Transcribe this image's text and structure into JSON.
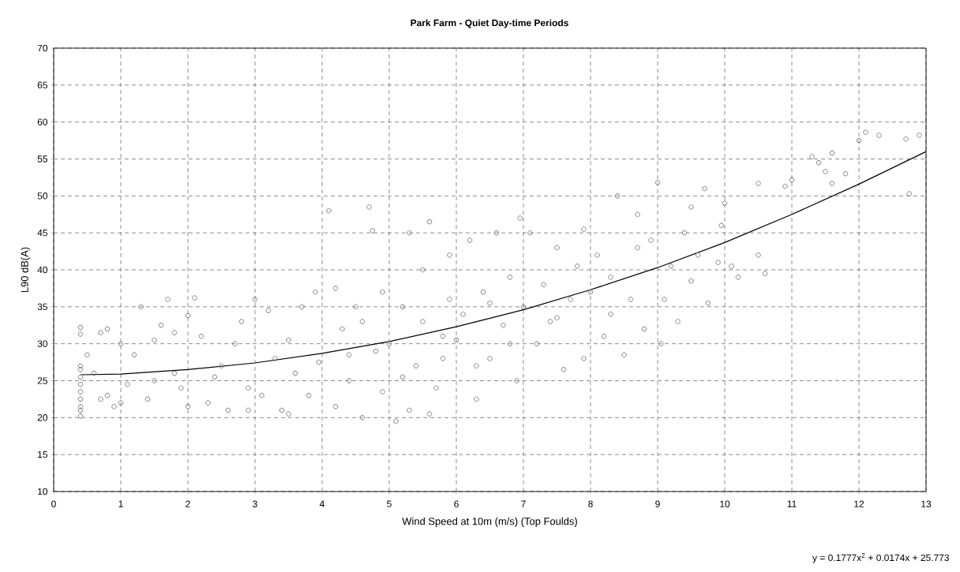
{
  "chart_data": {
    "type": "scatter",
    "title": "Park Farm - Quiet Day-time Periods",
    "xlabel": "Wind Speed at 10m (m/s) (Top Foulds)",
    "ylabel": "L90 dB(A)",
    "annotations": [
      "y = 0.1777x$^{2}$ + 0.0174x + 25.773"
    ],
    "xlim": [
      0,
      13
    ],
    "ylim": [
      10,
      70
    ],
    "xticks": [
      0,
      1,
      2,
      3,
      4,
      5,
      6,
      7,
      8,
      9,
      10,
      11,
      12,
      13
    ],
    "yticks": [
      10,
      15,
      20,
      25,
      30,
      35,
      40,
      45,
      50,
      55,
      60,
      65,
      70
    ],
    "grid": true,
    "series": [
      {
        "color": "#808080",
        "marker": "circle",
        "x": [
          0.4,
          0.4,
          0.4,
          0.4,
          0.4,
          0.4,
          0.4,
          0.4,
          0.4,
          0.4,
          0.4,
          0.5,
          0.6,
          0.7,
          0.8,
          0.7,
          0.9,
          0.8,
          1.0,
          1.0,
          1.1,
          1.2,
          1.3,
          1.4,
          1.5,
          1.6,
          1.7,
          1.8,
          1.9,
          2.0,
          2.0,
          1.5,
          1.8,
          2.1,
          2.2,
          2.3,
          2.5,
          2.6,
          2.7,
          2.9,
          2.8,
          2.4,
          2.9,
          3.0,
          3.1,
          3.2,
          3.3,
          3.4,
          3.5,
          3.6,
          3.7,
          3.8,
          3.9,
          3.95,
          3.5,
          4.1,
          4.2,
          4.3,
          4.4,
          4.5,
          4.6,
          4.7,
          4.75,
          4.8,
          4.9,
          4.4,
          4.6,
          4.9,
          4.2,
          5.0,
          5.1,
          5.2,
          5.3,
          5.4,
          5.5,
          5.6,
          5.7,
          5.8,
          5.9,
          5.3,
          5.5,
          5.8,
          5.6,
          5.2,
          5.9,
          6.0,
          6.1,
          6.2,
          6.3,
          6.4,
          6.5,
          6.6,
          6.7,
          6.8,
          6.9,
          6.95,
          6.3,
          6.5,
          6.8,
          7.0,
          7.1,
          7.2,
          7.3,
          7.4,
          7.5,
          7.6,
          7.7,
          7.8,
          7.9,
          7.5,
          7.9,
          8.0,
          8.1,
          8.2,
          8.3,
          8.4,
          8.5,
          8.6,
          8.7,
          8.8,
          8.9,
          8.7,
          8.3,
          9.0,
          9.05,
          9.1,
          9.2,
          9.3,
          9.4,
          9.5,
          9.6,
          9.7,
          9.75,
          9.9,
          9.95,
          9.5,
          10.0,
          10.1,
          10.2,
          10.5,
          10.6,
          10.5,
          10.9,
          11.0,
          11.3,
          11.4,
          11.5,
          11.6,
          11.6,
          11.8,
          12.0,
          12.1,
          12.3,
          12.7,
          12.75,
          12.9
        ],
        "values": [
          32.2,
          31.3,
          27,
          26.5,
          25.5,
          24.5,
          23.5,
          22.5,
          21.5,
          21,
          20.2,
          28.5,
          26,
          31.5,
          32,
          22.5,
          21.5,
          23,
          30,
          22,
          24.5,
          28.5,
          35,
          22.5,
          30.5,
          32.5,
          36,
          26,
          24,
          33.8,
          21.5,
          25,
          31.5,
          36.2,
          31,
          22,
          27,
          21,
          30,
          24,
          33,
          25.5,
          21,
          36,
          23,
          34.5,
          28,
          21,
          30.5,
          26,
          35,
          23,
          37,
          27.5,
          20.5,
          48,
          37.5,
          32,
          25,
          35,
          20,
          48.5,
          45.3,
          29,
          37,
          28.5,
          33,
          23.5,
          21.5,
          30,
          19.5,
          35,
          45,
          27,
          40,
          46.5,
          24,
          31,
          42,
          21,
          33,
          28,
          20.5,
          25.5,
          36,
          30.5,
          34,
          44,
          22.5,
          37,
          28,
          45,
          32.5,
          39,
          25,
          47,
          27,
          35.5,
          30,
          35,
          45,
          30,
          38,
          33,
          43,
          26.5,
          36,
          40.5,
          28,
          33.5,
          45.5,
          37,
          42,
          31,
          39,
          50,
          28.5,
          36,
          43,
          32,
          44,
          47.5,
          34,
          51.8,
          30,
          36,
          40.5,
          33,
          45,
          48.5,
          42,
          51,
          35.5,
          41,
          46,
          38.5,
          49,
          40.5,
          39,
          42,
          39.5,
          51.7,
          51.3,
          52.2,
          55.3,
          54.5,
          53.3,
          55.8,
          51.7,
          53,
          57.5,
          58.6,
          58.2,
          57.7,
          50.3,
          58.2
        ]
      },
      {
        "type": "line",
        "color": "#000000",
        "marker": "none",
        "line_style": "solid",
        "x": [
          0.4,
          1,
          2,
          3,
          4,
          5,
          6,
          7,
          8,
          9,
          10,
          11,
          12,
          13
        ],
        "values": [
          25.8,
          25.9,
          26.5,
          27.4,
          28.7,
          30.3,
          32.3,
          34.6,
          37.3,
          40.3,
          43.7,
          47.5,
          51.6,
          56
        ]
      }
    ]
  }
}
